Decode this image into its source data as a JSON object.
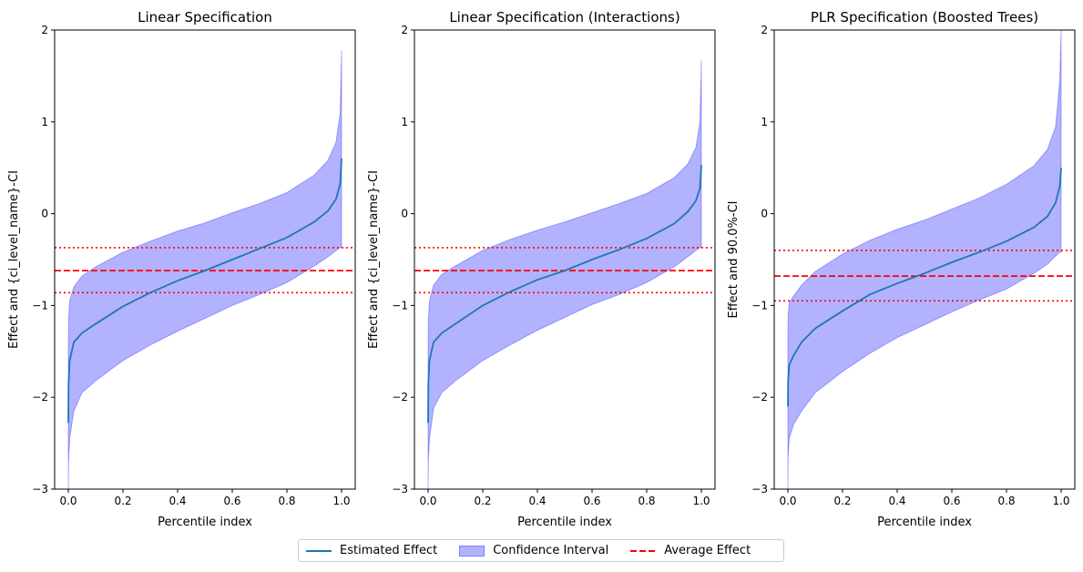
{
  "colors": {
    "estimate": "#1f77b4",
    "ci_fill": "#0000ff",
    "average": "#ff0000"
  },
  "legend": {
    "estimated": "Estimated Effect",
    "ci": "Confidence Interval",
    "average": "Average Effect"
  },
  "chart_data": [
    {
      "type": "area",
      "title": "Linear Specification",
      "xlabel": "Percentile index",
      "ylabel": "Effect and {ci_level_name}-CI",
      "xlim": [
        -0.05,
        1.05
      ],
      "ylim": [
        -3,
        2
      ],
      "xticks": [
        "0.0",
        "0.2",
        "0.4",
        "0.6",
        "0.8",
        "1.0"
      ],
      "yticks": [
        "−3",
        "−2",
        "−1",
        "0",
        "1",
        "2"
      ],
      "average_effect": -0.62,
      "average_ci": [
        -0.86,
        -0.37
      ],
      "series": {
        "x": [
          0.0,
          0.001,
          0.005,
          0.02,
          0.05,
          0.1,
          0.2,
          0.3,
          0.4,
          0.5,
          0.6,
          0.7,
          0.8,
          0.9,
          0.95,
          0.98,
          0.995,
          1.0
        ],
        "estimate": [
          -2.28,
          -1.85,
          -1.6,
          -1.4,
          -1.3,
          -1.2,
          -1.01,
          -0.86,
          -0.73,
          -0.62,
          -0.5,
          -0.38,
          -0.26,
          -0.09,
          0.03,
          0.16,
          0.33,
          0.6
        ],
        "ci_lower": [
          -3.0,
          -2.7,
          -2.45,
          -2.15,
          -1.95,
          -1.82,
          -1.6,
          -1.43,
          -1.28,
          -1.14,
          -1.0,
          -0.88,
          -0.75,
          -0.57,
          -0.47,
          -0.4,
          -0.37,
          -0.37
        ],
        "ci_upper": [
          -1.55,
          -1.15,
          -0.95,
          -0.8,
          -0.68,
          -0.58,
          -0.42,
          -0.3,
          -0.19,
          -0.1,
          0.01,
          0.11,
          0.23,
          0.42,
          0.58,
          0.78,
          1.1,
          1.78
        ]
      }
    },
    {
      "type": "area",
      "title": "Linear Specification (Interactions)",
      "xlabel": "Percentile index",
      "ylabel": "Effect and {ci_level_name}-CI",
      "xlim": [
        -0.05,
        1.05
      ],
      "ylim": [
        -3,
        2
      ],
      "xticks": [
        "0.0",
        "0.2",
        "0.4",
        "0.6",
        "0.8",
        "1.0"
      ],
      "yticks": [
        "−3",
        "−2",
        "−1",
        "0",
        "1",
        "2"
      ],
      "average_effect": -0.62,
      "average_ci": [
        -0.86,
        -0.37
      ],
      "series": {
        "x": [
          0.0,
          0.001,
          0.005,
          0.02,
          0.05,
          0.1,
          0.2,
          0.3,
          0.4,
          0.5,
          0.6,
          0.7,
          0.8,
          0.9,
          0.95,
          0.98,
          0.995,
          1.0
        ],
        "estimate": [
          -2.28,
          -1.85,
          -1.6,
          -1.4,
          -1.3,
          -1.2,
          -1.0,
          -0.85,
          -0.72,
          -0.62,
          -0.5,
          -0.39,
          -0.27,
          -0.11,
          0.02,
          0.14,
          0.28,
          0.53
        ],
        "ci_lower": [
          -3.0,
          -2.7,
          -2.45,
          -2.12,
          -1.95,
          -1.82,
          -1.6,
          -1.43,
          -1.27,
          -1.13,
          -0.99,
          -0.88,
          -0.75,
          -0.58,
          -0.47,
          -0.4,
          -0.37,
          -0.37
        ],
        "ci_upper": [
          -1.55,
          -1.15,
          -0.95,
          -0.78,
          -0.66,
          -0.57,
          -0.4,
          -0.28,
          -0.18,
          -0.09,
          0.01,
          0.11,
          0.22,
          0.39,
          0.54,
          0.72,
          1.0,
          1.67
        ]
      }
    },
    {
      "type": "area",
      "title": "PLR Specification (Boosted Trees)",
      "xlabel": "Percentile index",
      "ylabel": "Effect and 90.0%-CI",
      "xlim": [
        -0.05,
        1.05
      ],
      "ylim": [
        -3,
        2
      ],
      "xticks": [
        "0.0",
        "0.2",
        "0.4",
        "0.6",
        "0.8",
        "1.0"
      ],
      "yticks": [
        "−3",
        "−2",
        "−1",
        "0",
        "1",
        "2"
      ],
      "average_effect": -0.68,
      "average_ci": [
        -0.95,
        -0.4
      ],
      "series": {
        "x": [
          0.0,
          0.001,
          0.005,
          0.02,
          0.05,
          0.1,
          0.2,
          0.3,
          0.4,
          0.5,
          0.6,
          0.7,
          0.8,
          0.9,
          0.95,
          0.98,
          0.995,
          1.0
        ],
        "estimate": [
          -2.1,
          -1.82,
          -1.65,
          -1.55,
          -1.4,
          -1.25,
          -1.06,
          -0.88,
          -0.76,
          -0.65,
          -0.53,
          -0.42,
          -0.3,
          -0.15,
          -0.03,
          0.12,
          0.3,
          0.5
        ],
        "ci_lower": [
          -3.0,
          -2.65,
          -2.45,
          -2.3,
          -2.15,
          -1.95,
          -1.72,
          -1.52,
          -1.35,
          -1.21,
          -1.07,
          -0.94,
          -0.82,
          -0.65,
          -0.55,
          -0.46,
          -0.42,
          -0.42
        ],
        "ci_upper": [
          -1.4,
          -1.1,
          -0.97,
          -0.9,
          -0.78,
          -0.63,
          -0.44,
          -0.29,
          -0.17,
          -0.07,
          0.05,
          0.17,
          0.32,
          0.52,
          0.7,
          0.95,
          1.45,
          2.0
        ]
      }
    }
  ]
}
